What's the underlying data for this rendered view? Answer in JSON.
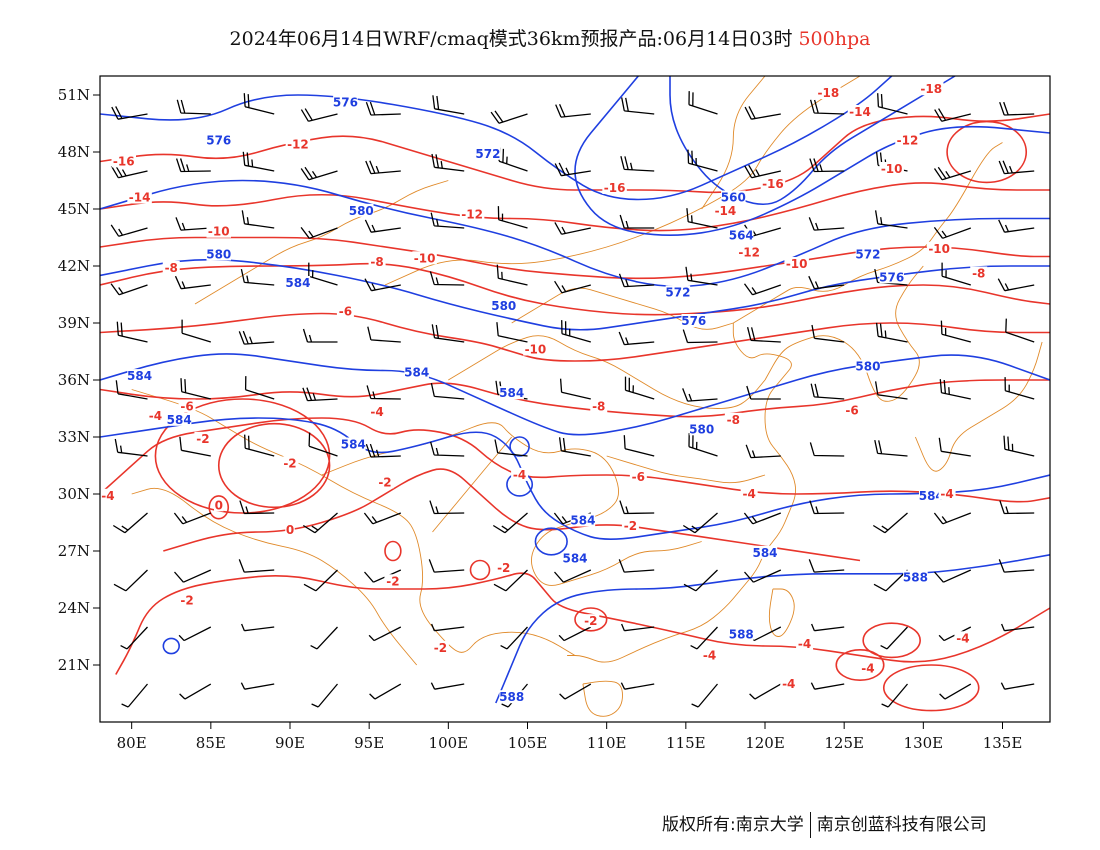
{
  "title": {
    "main": "2024年06月14日WRF/cmaq模式36km预报产品:06月14日03时",
    "level": "500hpa"
  },
  "axes": {
    "lat_ticks": [
      "51N",
      "48N",
      "45N",
      "42N",
      "39N",
      "36N",
      "33N",
      "30N",
      "27N",
      "24N",
      "21N"
    ],
    "lon_ticks": [
      "80E",
      "85E",
      "90E",
      "95E",
      "100E",
      "105E",
      "110E",
      "115E",
      "120E",
      "125E",
      "130E",
      "135E"
    ],
    "lon_range": [
      78,
      138
    ],
    "lat_range": [
      18,
      52
    ]
  },
  "colors": {
    "height_contour": "#1f3fe0",
    "temp_contour": "#e8352b",
    "border": "#e08a2a",
    "wind_barb": "#000000"
  },
  "height_labels": [
    {
      "text": "576",
      "lon": 93.5,
      "lat": 50.5
    },
    {
      "text": "572",
      "lon": 102.5,
      "lat": 47.8
    },
    {
      "text": "576",
      "lon": 85.5,
      "lat": 48.5
    },
    {
      "text": "580",
      "lon": 85.5,
      "lat": 42.5
    },
    {
      "text": "580",
      "lon": 94.5,
      "lat": 44.8
    },
    {
      "text": "584",
      "lon": 90.5,
      "lat": 41.0
    },
    {
      "text": "580",
      "lon": 103.5,
      "lat": 39.8
    },
    {
      "text": "576",
      "lon": 115.5,
      "lat": 39.0
    },
    {
      "text": "572",
      "lon": 114.5,
      "lat": 40.5
    },
    {
      "text": "564",
      "lon": 118.5,
      "lat": 43.5
    },
    {
      "text": "560",
      "lon": 118.0,
      "lat": 45.5
    },
    {
      "text": "572",
      "lon": 126.5,
      "lat": 42.5
    },
    {
      "text": "576",
      "lon": 128.0,
      "lat": 41.3
    },
    {
      "text": "580",
      "lon": 126.5,
      "lat": 36.6
    },
    {
      "text": "584",
      "lon": 80.5,
      "lat": 36.1
    },
    {
      "text": "584",
      "lon": 83.0,
      "lat": 33.8
    },
    {
      "text": "584",
      "lon": 98.0,
      "lat": 36.3
    },
    {
      "text": "584",
      "lon": 104.0,
      "lat": 35.2
    },
    {
      "text": "584",
      "lon": 94.0,
      "lat": 32.5
    },
    {
      "text": "580",
      "lon": 116.0,
      "lat": 33.3
    },
    {
      "text": "584",
      "lon": 108.5,
      "lat": 28.5
    },
    {
      "text": "584",
      "lon": 108.0,
      "lat": 26.5
    },
    {
      "text": "584",
      "lon": 120.0,
      "lat": 26.8
    },
    {
      "text": "584",
      "lon": 130.5,
      "lat": 29.8
    },
    {
      "text": "588",
      "lon": 129.5,
      "lat": 25.5
    },
    {
      "text": "588",
      "lon": 118.5,
      "lat": 22.5
    },
    {
      "text": "588",
      "lon": 104.0,
      "lat": 19.2
    }
  ],
  "temp_labels": [
    {
      "text": "-16",
      "lon": 79.5,
      "lat": 47.4
    },
    {
      "text": "-14",
      "lon": 80.5,
      "lat": 45.5
    },
    {
      "text": "-12",
      "lon": 90.5,
      "lat": 48.3
    },
    {
      "text": "-10",
      "lon": 85.5,
      "lat": 43.7
    },
    {
      "text": "-8",
      "lon": 82.5,
      "lat": 41.8
    },
    {
      "text": "-12",
      "lon": 101.5,
      "lat": 44.6
    },
    {
      "text": "-16",
      "lon": 110.5,
      "lat": 46.0
    },
    {
      "text": "-10",
      "lon": 98.5,
      "lat": 42.3
    },
    {
      "text": "-8",
      "lon": 95.5,
      "lat": 42.1
    },
    {
      "text": "-6",
      "lon": 93.5,
      "lat": 39.5
    },
    {
      "text": "-10",
      "lon": 105.5,
      "lat": 37.5
    },
    {
      "text": "-16",
      "lon": 120.5,
      "lat": 46.2
    },
    {
      "text": "-14",
      "lon": 117.5,
      "lat": 44.8
    },
    {
      "text": "-12",
      "lon": 119.0,
      "lat": 42.6
    },
    {
      "text": "-10",
      "lon": 122.0,
      "lat": 42.0
    },
    {
      "text": "-18",
      "lon": 124.0,
      "lat": 51.0
    },
    {
      "text": "-14",
      "lon": 126.0,
      "lat": 50.0
    },
    {
      "text": "-18",
      "lon": 130.5,
      "lat": 51.2
    },
    {
      "text": "-12",
      "lon": 129.0,
      "lat": 48.5
    },
    {
      "text": "-10",
      "lon": 128.0,
      "lat": 47.0
    },
    {
      "text": "-10",
      "lon": 131.0,
      "lat": 42.8
    },
    {
      "text": "-8",
      "lon": 133.5,
      "lat": 41.5
    },
    {
      "text": "-6",
      "lon": 83.5,
      "lat": 34.5
    },
    {
      "text": "-4",
      "lon": 81.5,
      "lat": 34.0
    },
    {
      "text": "-2",
      "lon": 84.5,
      "lat": 32.8
    },
    {
      "text": "-2",
      "lon": 90.0,
      "lat": 31.5
    },
    {
      "text": "-4",
      "lon": 95.5,
      "lat": 34.2
    },
    {
      "text": "-2",
      "lon": 96.0,
      "lat": 30.5
    },
    {
      "text": "0",
      "lon": 85.5,
      "lat": 29.3
    },
    {
      "text": "0",
      "lon": 90.0,
      "lat": 28.0
    },
    {
      "text": "-4",
      "lon": 78.5,
      "lat": 29.8
    },
    {
      "text": "-2",
      "lon": 83.5,
      "lat": 24.3
    },
    {
      "text": "-2",
      "lon": 96.5,
      "lat": 25.3
    },
    {
      "text": "-2",
      "lon": 103.5,
      "lat": 26.0
    },
    {
      "text": "-2",
      "lon": 99.5,
      "lat": 21.8
    },
    {
      "text": "-8",
      "lon": 109.5,
      "lat": 34.5
    },
    {
      "text": "-4",
      "lon": 104.5,
      "lat": 30.9
    },
    {
      "text": "-6",
      "lon": 112.0,
      "lat": 30.8
    },
    {
      "text": "-8",
      "lon": 118.0,
      "lat": 33.8
    },
    {
      "text": "-6",
      "lon": 125.5,
      "lat": 34.3
    },
    {
      "text": "-4",
      "lon": 119.0,
      "lat": 29.9
    },
    {
      "text": "-2",
      "lon": 111.5,
      "lat": 28.2
    },
    {
      "text": "-2",
      "lon": 109.0,
      "lat": 23.2
    },
    {
      "text": "-4",
      "lon": 116.5,
      "lat": 21.4
    },
    {
      "text": "-4",
      "lon": 122.5,
      "lat": 22.0
    },
    {
      "text": "-4",
      "lon": 131.5,
      "lat": 29.9
    },
    {
      "text": "-4",
      "lon": 132.5,
      "lat": 22.3
    },
    {
      "text": "-4",
      "lon": 126.5,
      "lat": 20.7
    },
    {
      "text": "-4",
      "lon": 121.5,
      "lat": 19.9
    }
  ],
  "footer": {
    "left": "版权所有:南京大学",
    "right": "南京创蓝科技有限公司"
  }
}
